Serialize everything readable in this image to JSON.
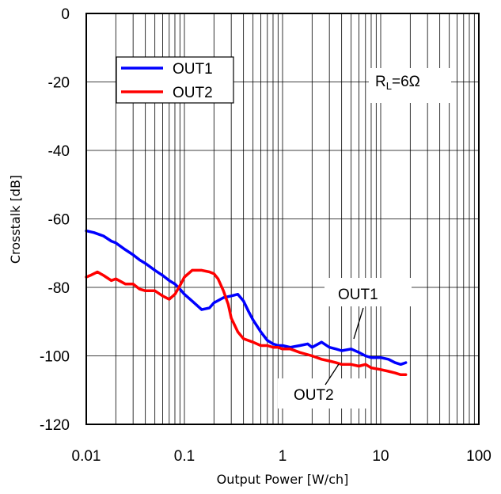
{
  "chart_data": {
    "type": "line",
    "title": "",
    "xlabel": "Output Power [W/ch]",
    "ylabel": "Crosstalk [dB]",
    "xscale": "log",
    "xlim": [
      0.01,
      100
    ],
    "ylim": [
      -120,
      0
    ],
    "xticks": [
      "0.01",
      "0.1",
      "1",
      "10",
      "100"
    ],
    "yticks": [
      "0",
      "-20",
      "-40",
      "-60",
      "-80",
      "-100",
      "-120"
    ],
    "grid": true,
    "legend_position": "top-left",
    "annotation_condition": "R",
    "annotation_condition_sub": "L",
    "annotation_condition_value": "=6Ω",
    "series": [
      {
        "name": "OUT1",
        "color": "#0000ff",
        "x": [
          0.01,
          0.012,
          0.015,
          0.018,
          0.02,
          0.025,
          0.03,
          0.035,
          0.04,
          0.05,
          0.06,
          0.07,
          0.08,
          0.09,
          0.1,
          0.12,
          0.15,
          0.18,
          0.2,
          0.25,
          0.3,
          0.35,
          0.4,
          0.45,
          0.5,
          0.6,
          0.7,
          0.8,
          0.9,
          1.0,
          1.2,
          1.5,
          1.8,
          2.0,
          2.5,
          3.0,
          3.5,
          4.0,
          5.0,
          6.0,
          7.0,
          8.0,
          10.0,
          12.0,
          14.0,
          16.0,
          18.0
        ],
        "values": [
          -63.5,
          -64,
          -65,
          -66.5,
          -67,
          -69,
          -70.5,
          -72,
          -73,
          -75,
          -76.5,
          -78,
          -79,
          -80.5,
          -82,
          -84,
          -86.5,
          -86,
          -84.5,
          -83,
          -82.5,
          -82,
          -84,
          -87,
          -89.5,
          -93,
          -95.5,
          -96.5,
          -97,
          -97,
          -97.5,
          -97,
          -96.5,
          -97.5,
          -96,
          -97.5,
          -98,
          -98.5,
          -98,
          -99,
          -100,
          -100.5,
          -100.5,
          -101,
          -102,
          -102.5,
          -102
        ]
      },
      {
        "name": "OUT2",
        "color": "#ff0000",
        "x": [
          0.01,
          0.011,
          0.013,
          0.015,
          0.018,
          0.02,
          0.025,
          0.03,
          0.035,
          0.04,
          0.05,
          0.06,
          0.07,
          0.08,
          0.09,
          0.1,
          0.12,
          0.15,
          0.18,
          0.2,
          0.22,
          0.25,
          0.28,
          0.3,
          0.35,
          0.4,
          0.5,
          0.6,
          0.7,
          0.8,
          0.9,
          1.0,
          1.2,
          1.5,
          2.0,
          2.5,
          3.0,
          3.5,
          4.0,
          5.0,
          6.0,
          7.0,
          8.0,
          10.0,
          12.0,
          14.0,
          16.0,
          18.0
        ],
        "values": [
          -77,
          -76.5,
          -75.5,
          -76.5,
          -78,
          -77.5,
          -79,
          -79,
          -80.5,
          -81,
          -81,
          -82.5,
          -83.5,
          -82,
          -79.5,
          -77,
          -75,
          -75,
          -75.5,
          -76,
          -77.5,
          -81,
          -85,
          -89,
          -93,
          -95,
          -96,
          -97,
          -97,
          -97.5,
          -97.5,
          -98,
          -98,
          -99,
          -100,
          -101,
          -101.5,
          -102,
          -102.5,
          -102.5,
          -103,
          -102.5,
          -103.5,
          -104,
          -104.5,
          -105,
          -105.5,
          -105.5
        ]
      }
    ],
    "annotations": [
      {
        "label": "OUT1",
        "target_x": 5.0,
        "target_y": -98.5
      },
      {
        "label": "OUT2",
        "target_x": 4.5,
        "target_y": -102.5
      }
    ]
  }
}
